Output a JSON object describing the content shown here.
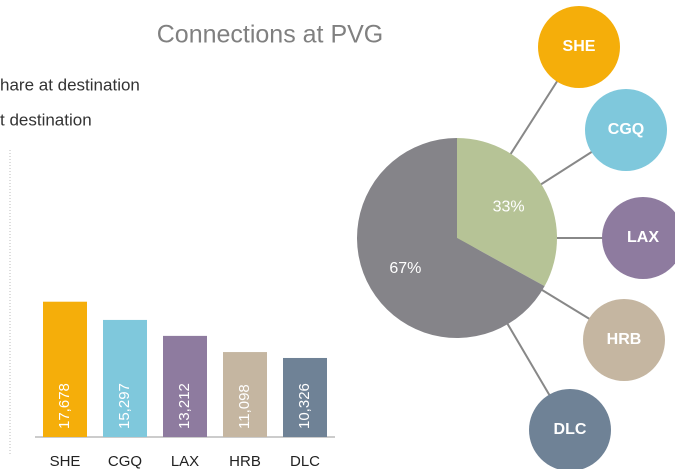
{
  "title": "Connections at PVG",
  "legend": [
    "hare at destination",
    "t destination"
  ],
  "chart_data": [
    {
      "type": "bar",
      "categories": [
        "SHE",
        "CGQ",
        "LAX",
        "HRB",
        "DLC"
      ],
      "values": [
        17678,
        15297,
        13212,
        11098,
        10326
      ],
      "value_labels": [
        "17,678",
        "15,297",
        "13,212",
        "11,098",
        "10,326"
      ],
      "colors": [
        "#f5ae0a",
        "#7fc8dc",
        "#8e7b9f",
        "#c5b6a1",
        "#6f8296"
      ],
      "ylim": [
        0,
        37500
      ]
    },
    {
      "type": "pie",
      "values": [
        33,
        67
      ],
      "value_labels": [
        "33%",
        "67%"
      ],
      "colors": [
        "#b6c396",
        "#858489"
      ],
      "destinations": [
        {
          "name": "SHE",
          "color": "#f5ae0a"
        },
        {
          "name": "CGQ",
          "color": "#7fc8dc"
        },
        {
          "name": "LAX",
          "color": "#8e7b9f"
        },
        {
          "name": "HRB",
          "color": "#c5b6a1"
        },
        {
          "name": "DLC",
          "color": "#6f8296"
        }
      ]
    }
  ]
}
